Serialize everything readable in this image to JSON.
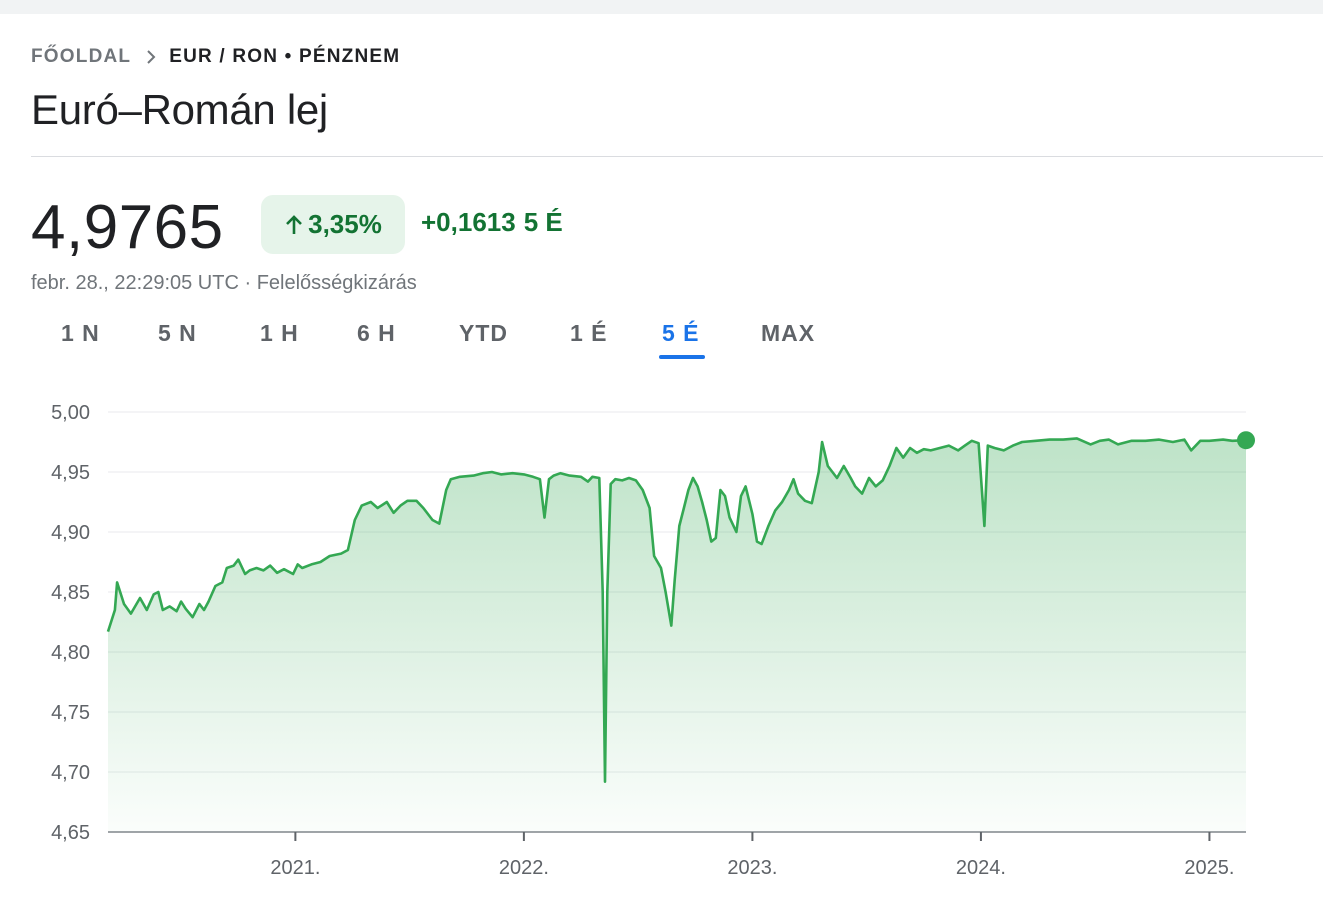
{
  "breadcrumb": {
    "home": "FŐOLDAL",
    "current": "EUR / RON • PÉNZNEM"
  },
  "title": "Euró–Román lej",
  "quote": {
    "price": "4,9765",
    "percent": "3,35%",
    "change": "+0,1613",
    "period": "5 É",
    "timestamp": "febr. 28., 22:29:05 UTC · ",
    "disclaimer": "Felelősségkizárás"
  },
  "tabs": [
    {
      "label": "1 N"
    },
    {
      "label": "5 N"
    },
    {
      "label": "1 H"
    },
    {
      "label": "6 H"
    },
    {
      "label": "YTD"
    },
    {
      "label": "1 É"
    },
    {
      "label": "5 É",
      "active": true
    },
    {
      "label": "MAX"
    }
  ],
  "colors": {
    "line": "#34a853",
    "positive_text": "#137333",
    "positive_bg": "#e6f4ea",
    "active_tab": "#1a73e8"
  },
  "chart_data": {
    "type": "area",
    "y_ticks": [
      "5,00",
      "4,95",
      "4,90",
      "4,85",
      "4,80",
      "4,75",
      "4,70",
      "4,65"
    ],
    "x_ticks": [
      {
        "label": "2021.",
        "x": 2021.0
      },
      {
        "label": "2022.",
        "x": 2022.0
      },
      {
        "label": "2023.",
        "x": 2023.0
      },
      {
        "label": "2024.",
        "x": 2024.0
      },
      {
        "label": "2025.",
        "x": 2025.0
      }
    ],
    "xlim": [
      2020.18,
      2025.16
    ],
    "ylim": [
      4.65,
      5.0
    ],
    "grid": true,
    "series": [
      {
        "values": [
          [
            2020.18,
            4.817
          ],
          [
            2020.21,
            4.835
          ],
          [
            2020.22,
            4.858
          ],
          [
            2020.25,
            4.84
          ],
          [
            2020.28,
            4.832
          ],
          [
            2020.32,
            4.845
          ],
          [
            2020.35,
            4.835
          ],
          [
            2020.38,
            4.848
          ],
          [
            2020.4,
            4.85
          ],
          [
            2020.42,
            4.835
          ],
          [
            2020.45,
            4.838
          ],
          [
            2020.48,
            4.834
          ],
          [
            2020.5,
            4.842
          ],
          [
            2020.52,
            4.836
          ],
          [
            2020.55,
            4.829
          ],
          [
            2020.58,
            4.84
          ],
          [
            2020.6,
            4.835
          ],
          [
            2020.62,
            4.842
          ],
          [
            2020.65,
            4.855
          ],
          [
            2020.68,
            4.858
          ],
          [
            2020.7,
            4.87
          ],
          [
            2020.73,
            4.872
          ],
          [
            2020.75,
            4.877
          ],
          [
            2020.78,
            4.865
          ],
          [
            2020.8,
            4.868
          ],
          [
            2020.83,
            4.87
          ],
          [
            2020.86,
            4.868
          ],
          [
            2020.89,
            4.872
          ],
          [
            2020.92,
            4.866
          ],
          [
            2020.95,
            4.869
          ],
          [
            2020.99,
            4.865
          ],
          [
            2021.01,
            4.873
          ],
          [
            2021.03,
            4.87
          ],
          [
            2021.07,
            4.873
          ],
          [
            2021.11,
            4.875
          ],
          [
            2021.15,
            4.88
          ],
          [
            2021.2,
            4.882
          ],
          [
            2021.23,
            4.885
          ],
          [
            2021.26,
            4.91
          ],
          [
            2021.29,
            4.922
          ],
          [
            2021.33,
            4.925
          ],
          [
            2021.36,
            4.92
          ],
          [
            2021.4,
            4.925
          ],
          [
            2021.43,
            4.916
          ],
          [
            2021.46,
            4.922
          ],
          [
            2021.49,
            4.926
          ],
          [
            2021.53,
            4.926
          ],
          [
            2021.56,
            4.92
          ],
          [
            2021.6,
            4.91
          ],
          [
            2021.63,
            4.907
          ],
          [
            2021.66,
            4.935
          ],
          [
            2021.68,
            4.944
          ],
          [
            2021.72,
            4.946
          ],
          [
            2021.78,
            4.947
          ],
          [
            2021.82,
            4.949
          ],
          [
            2021.86,
            4.95
          ],
          [
            2021.9,
            4.948
          ],
          [
            2021.95,
            4.949
          ],
          [
            2022.0,
            4.948
          ],
          [
            2022.04,
            4.946
          ],
          [
            2022.07,
            4.944
          ],
          [
            2022.09,
            4.912
          ],
          [
            2022.11,
            4.944
          ],
          [
            2022.13,
            4.947
          ],
          [
            2022.16,
            4.949
          ],
          [
            2022.2,
            4.947
          ],
          [
            2022.25,
            4.946
          ],
          [
            2022.28,
            4.942
          ],
          [
            2022.3,
            4.946
          ],
          [
            2022.33,
            4.945
          ],
          [
            2022.345,
            4.85
          ],
          [
            2022.355,
            4.692
          ],
          [
            2022.365,
            4.85
          ],
          [
            2022.38,
            4.94
          ],
          [
            2022.4,
            4.944
          ],
          [
            2022.43,
            4.943
          ],
          [
            2022.46,
            4.945
          ],
          [
            2022.49,
            4.943
          ],
          [
            2022.52,
            4.935
          ],
          [
            2022.55,
            4.92
          ],
          [
            2022.57,
            4.88
          ],
          [
            2022.6,
            4.87
          ],
          [
            2022.62,
            4.85
          ],
          [
            2022.645,
            4.822
          ],
          [
            2022.66,
            4.86
          ],
          [
            2022.68,
            4.905
          ],
          [
            2022.7,
            4.92
          ],
          [
            2022.72,
            4.935
          ],
          [
            2022.74,
            4.945
          ],
          [
            2022.76,
            4.938
          ],
          [
            2022.78,
            4.925
          ],
          [
            2022.8,
            4.91
          ],
          [
            2022.82,
            4.892
          ],
          [
            2022.84,
            4.895
          ],
          [
            2022.86,
            4.935
          ],
          [
            2022.88,
            4.93
          ],
          [
            2022.9,
            4.912
          ],
          [
            2022.93,
            4.9
          ],
          [
            2022.95,
            4.93
          ],
          [
            2022.97,
            4.938
          ],
          [
            2023.0,
            4.915
          ],
          [
            2023.02,
            4.892
          ],
          [
            2023.04,
            4.89
          ],
          [
            2023.07,
            4.905
          ],
          [
            2023.1,
            4.918
          ],
          [
            2023.13,
            4.925
          ],
          [
            2023.16,
            4.935
          ],
          [
            2023.18,
            4.944
          ],
          [
            2023.2,
            4.932
          ],
          [
            2023.23,
            4.926
          ],
          [
            2023.26,
            4.924
          ],
          [
            2023.29,
            4.95
          ],
          [
            2023.305,
            4.975
          ],
          [
            2023.33,
            4.955
          ],
          [
            2023.37,
            4.945
          ],
          [
            2023.4,
            4.955
          ],
          [
            2023.43,
            4.945
          ],
          [
            2023.45,
            4.938
          ],
          [
            2023.48,
            4.932
          ],
          [
            2023.51,
            4.945
          ],
          [
            2023.54,
            4.938
          ],
          [
            2023.57,
            4.943
          ],
          [
            2023.6,
            4.955
          ],
          [
            2023.63,
            4.97
          ],
          [
            2023.66,
            4.962
          ],
          [
            2023.69,
            4.97
          ],
          [
            2023.72,
            4.966
          ],
          [
            2023.75,
            4.969
          ],
          [
            2023.78,
            4.968
          ],
          [
            2023.82,
            4.97
          ],
          [
            2023.86,
            4.972
          ],
          [
            2023.9,
            4.968
          ],
          [
            2023.93,
            4.972
          ],
          [
            2023.96,
            4.976
          ],
          [
            2023.99,
            4.974
          ],
          [
            2024.015,
            4.905
          ],
          [
            2024.03,
            4.972
          ],
          [
            2024.06,
            4.97
          ],
          [
            2024.1,
            4.968
          ],
          [
            2024.14,
            4.972
          ],
          [
            2024.18,
            4.975
          ],
          [
            2024.24,
            4.976
          ],
          [
            2024.3,
            4.977
          ],
          [
            2024.36,
            4.977
          ],
          [
            2024.42,
            4.978
          ],
          [
            2024.48,
            4.973
          ],
          [
            2024.52,
            4.976
          ],
          [
            2024.56,
            4.977
          ],
          [
            2024.6,
            4.973
          ],
          [
            2024.66,
            4.976
          ],
          [
            2024.72,
            4.976
          ],
          [
            2024.78,
            4.977
          ],
          [
            2024.84,
            4.975
          ],
          [
            2024.89,
            4.977
          ],
          [
            2024.92,
            4.968
          ],
          [
            2024.96,
            4.976
          ],
          [
            2025.0,
            4.976
          ],
          [
            2025.06,
            4.977
          ],
          [
            2025.1,
            4.976
          ],
          [
            2025.16,
            4.9765
          ]
        ]
      }
    ]
  }
}
